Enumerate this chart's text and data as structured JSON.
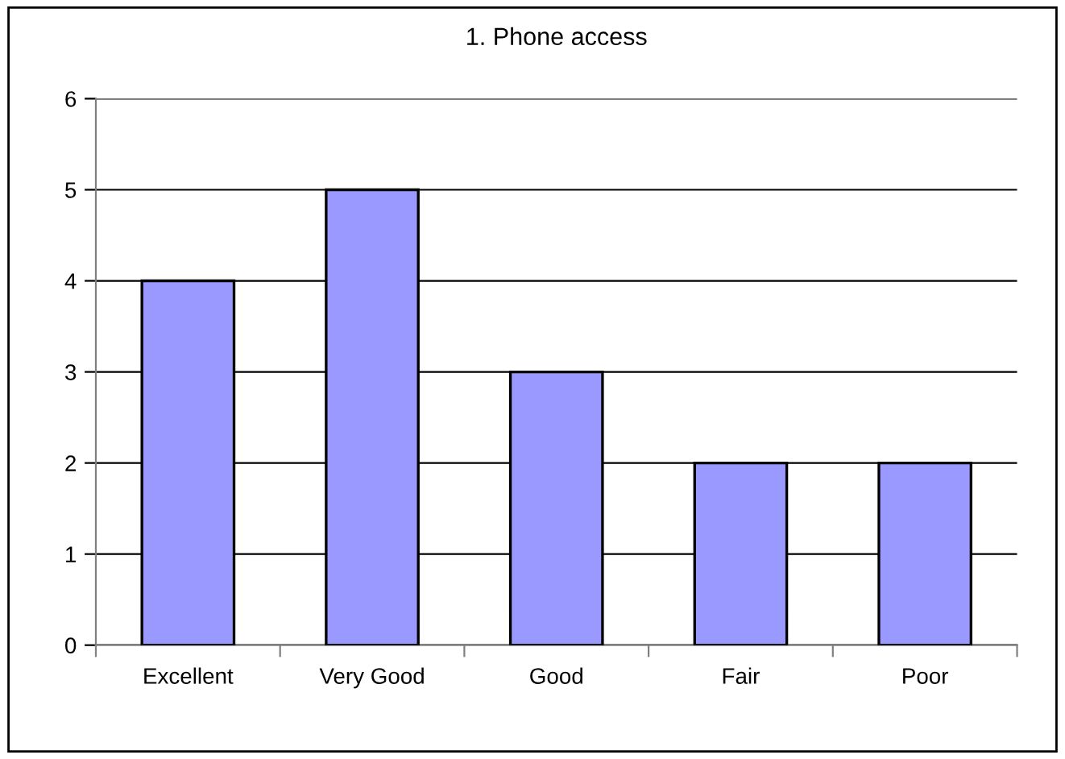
{
  "chart_data": {
    "type": "bar",
    "title": "1. Phone access",
    "categories": [
      "Excellent",
      "Very Good",
      "Good",
      "Fair",
      "Poor"
    ],
    "values": [
      4,
      5,
      3,
      2,
      2
    ],
    "color": "#9999ff",
    "ylim": [
      0,
      6
    ],
    "yticks": [
      0,
      1,
      2,
      3,
      4,
      5,
      6
    ],
    "grid": "y",
    "legend": false
  }
}
